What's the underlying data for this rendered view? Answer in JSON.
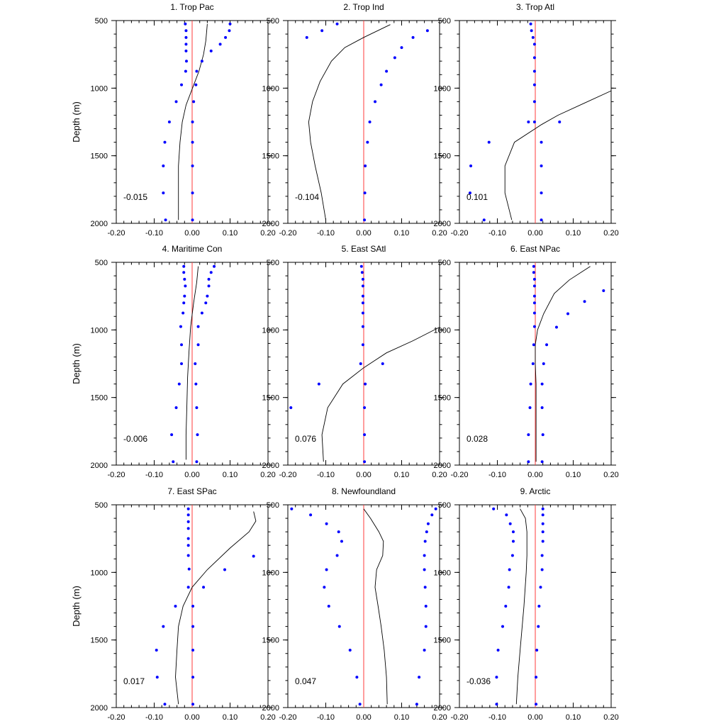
{
  "figure": {
    "ylabel": "Depth (m)"
  },
  "chart_data": [
    {
      "type": "scatter",
      "title": "1. Trop Pac",
      "annotation": "-0.015",
      "xlim": [
        -0.2,
        0.2
      ],
      "ylim": [
        500,
        2000
      ],
      "xticks": [
        "-0.20",
        "-0.10",
        "0.00",
        "0.10",
        "0.20"
      ],
      "yticks": [
        "500",
        "1000",
        "1500",
        "2000"
      ],
      "depths": [
        525,
        575,
        625,
        675,
        725,
        800,
        875,
        975,
        1100,
        1250,
        1400,
        1575,
        1775,
        1975
      ],
      "points_left": [
        -0.018,
        -0.016,
        -0.016,
        -0.016,
        -0.016,
        -0.015,
        -0.017,
        -0.028,
        -0.042,
        -0.06,
        -0.072,
        -0.076,
        -0.076,
        -0.07
      ],
      "points_right": [
        0.1,
        0.098,
        0.088,
        0.074,
        0.05,
        0.026,
        0.012,
        0.01,
        0.004,
        0.001,
        0.001,
        0.001,
        0.001,
        0.001
      ],
      "line": [
        [
          0.04,
          525
        ],
        [
          0.036,
          650
        ],
        [
          0.03,
          750
        ],
        [
          0.018,
          875
        ],
        [
          0.001,
          1000
        ],
        [
          -0.016,
          1125
        ],
        [
          -0.026,
          1250
        ],
        [
          -0.032,
          1400
        ],
        [
          -0.036,
          1575
        ],
        [
          -0.036,
          1775
        ],
        [
          -0.036,
          1975
        ]
      ],
      "zero_line": true
    },
    {
      "type": "scatter",
      "title": "2. Trop Ind",
      "annotation": "-0.104",
      "xlim": [
        -0.2,
        0.2
      ],
      "ylim": [
        500,
        2000
      ],
      "xticks": [
        "-0.20",
        "-0.10",
        "0.00",
        "0.10",
        "0.20"
      ],
      "yticks": [
        "500",
        "1000",
        "1500",
        "2000"
      ],
      "depths": [
        525,
        575,
        625,
        700,
        800,
        875,
        975,
        1100,
        1250,
        1400,
        1575,
        1775,
        1975
      ],
      "points_left": [
        -0.07,
        -0.11,
        -0.15
      ],
      "points_left_depths": [
        525,
        575,
        625
      ],
      "points_right": [
        0.168,
        0.13,
        0.1,
        0.082,
        0.06,
        0.046,
        0.03,
        0.016,
        0.01,
        0.004,
        0.003,
        0.002
      ],
      "points_right_depths": [
        575,
        625,
        700,
        775,
        875,
        975,
        1100,
        1250,
        1400,
        1575,
        1775,
        1975
      ],
      "line": [
        [
          0.07,
          530
        ],
        [
          0.0,
          625
        ],
        [
          -0.05,
          700
        ],
        [
          -0.085,
          800
        ],
        [
          -0.115,
          950
        ],
        [
          -0.135,
          1100
        ],
        [
          -0.145,
          1250
        ],
        [
          -0.14,
          1400
        ],
        [
          -0.128,
          1575
        ],
        [
          -0.112,
          1775
        ],
        [
          -0.1,
          1975
        ]
      ],
      "zero_line": true
    },
    {
      "type": "scatter",
      "title": "3. Trop Atl",
      "annotation": "0.101",
      "xlim": [
        -0.2,
        0.2
      ],
      "ylim": [
        500,
        2000
      ],
      "xticks": [
        "-0.20",
        "-0.10",
        "0.00",
        "0.10",
        "0.20"
      ],
      "yticks": [
        "500",
        "1000",
        "1500",
        "2000"
      ],
      "points_left": [
        -0.012,
        -0.01,
        -0.006,
        -0.002,
        -0.002,
        -0.002,
        -0.002,
        -0.002,
        -0.002,
        -0.018,
        -0.122,
        -0.17,
        -0.172,
        -0.135
      ],
      "points_left_depths": [
        525,
        575,
        625,
        675,
        775,
        875,
        975,
        1100,
        1250,
        1250,
        1400,
        1575,
        1775,
        1975
      ],
      "points_right": [
        0.064,
        0.016,
        0.016,
        0.016,
        0.016
      ],
      "points_right_depths": [
        1250,
        1400,
        1575,
        1775,
        1975
      ],
      "line": [
        [
          0.2,
          1020
        ],
        [
          0.13,
          1110
        ],
        [
          0.06,
          1200
        ],
        [
          0.016,
          1270
        ],
        [
          -0.055,
          1400
        ],
        [
          -0.08,
          1575
        ],
        [
          -0.08,
          1775
        ],
        [
          -0.062,
          1975
        ]
      ],
      "zero_line": true
    },
    {
      "type": "scatter",
      "title": "4. Maritime Con",
      "annotation": "-0.006",
      "xlim": [
        -0.2,
        0.2
      ],
      "ylim": [
        500,
        2000
      ],
      "xticks": [
        "-0.20",
        "-0.10",
        "0.00",
        "0.10",
        "0.20"
      ],
      "yticks": [
        "500",
        "1000",
        "1500",
        "2000"
      ],
      "points_left": [
        -0.022,
        -0.022,
        -0.02,
        -0.018,
        -0.02,
        -0.022,
        -0.024,
        -0.03,
        -0.028,
        -0.028,
        -0.034,
        -0.042,
        -0.054,
        -0.05
      ],
      "points_left_depths": [
        530,
        575,
        625,
        675,
        750,
        800,
        875,
        975,
        1110,
        1250,
        1400,
        1575,
        1775,
        1975
      ],
      "points_right": [
        0.058,
        0.05,
        0.044,
        0.044,
        0.04,
        0.036,
        0.026,
        0.016,
        0.016,
        0.008,
        0.01,
        0.012,
        0.014,
        0.012
      ],
      "points_right_depths": [
        530,
        575,
        625,
        675,
        750,
        800,
        875,
        975,
        1110,
        1250,
        1400,
        1575,
        1775,
        1975
      ],
      "line": [
        [
          0.016,
          530
        ],
        [
          0.012,
          650
        ],
        [
          0.004,
          800
        ],
        [
          -0.004,
          975
        ],
        [
          -0.008,
          1150
        ],
        [
          -0.012,
          1350
        ],
        [
          -0.014,
          1575
        ],
        [
          -0.016,
          1775
        ],
        [
          -0.016,
          1960
        ]
      ],
      "zero_line": true
    },
    {
      "type": "scatter",
      "title": "5. East SAtl",
      "annotation": "0.076",
      "xlim": [
        -0.2,
        0.2
      ],
      "ylim": [
        500,
        2000
      ],
      "xticks": [
        "-0.20",
        "-0.10",
        "0.00",
        "0.10",
        "0.20"
      ],
      "yticks": [
        "500",
        "1000",
        "1500",
        "2000"
      ],
      "points_left": [
        -0.006,
        -0.004,
        -0.002,
        -0.002,
        -0.002,
        -0.002,
        -0.002,
        -0.002,
        -0.002,
        -0.008,
        -0.118,
        -0.192
      ],
      "points_left_depths": [
        530,
        575,
        625,
        675,
        750,
        800,
        875,
        975,
        1110,
        1250,
        1400,
        1575
      ],
      "points_right": [
        0.05,
        0.004,
        0.002,
        0.002,
        0.002
      ],
      "points_right_depths": [
        1250,
        1400,
        1575,
        1775,
        1975
      ],
      "line": [
        [
          0.2,
          980
        ],
        [
          0.13,
          1080
        ],
        [
          0.06,
          1170
        ],
        [
          0.0,
          1280
        ],
        [
          -0.055,
          1400
        ],
        [
          -0.095,
          1575
        ],
        [
          -0.11,
          1775
        ],
        [
          -0.106,
          1975
        ]
      ],
      "zero_line": true
    },
    {
      "type": "scatter",
      "title": "6. East NPac",
      "annotation": "0.028",
      "xlim": [
        -0.2,
        0.2
      ],
      "ylim": [
        500,
        2000
      ],
      "xticks": [
        "-0.20",
        "-0.10",
        "0.00",
        "0.10",
        "0.20"
      ],
      "yticks": [
        "500",
        "1000",
        "1500",
        "2000"
      ],
      "points_left": [
        -0.004,
        -0.004,
        -0.002,
        -0.002,
        -0.002,
        -0.002,
        -0.002,
        -0.002,
        -0.004,
        -0.006,
        -0.012,
        -0.014,
        -0.018,
        -0.018
      ],
      "points_left_depths": [
        530,
        575,
        625,
        675,
        750,
        800,
        875,
        975,
        1110,
        1250,
        1400,
        1575,
        1775,
        1975
      ],
      "points_right": [
        0.18,
        0.13,
        0.086,
        0.056,
        0.03,
        0.022,
        0.018,
        0.018,
        0.02,
        0.018
      ],
      "points_right_depths": [
        710,
        790,
        880,
        980,
        1110,
        1250,
        1400,
        1575,
        1775,
        1975
      ],
      "line": [
        [
          0.145,
          530
        ],
        [
          0.09,
          630
        ],
        [
          0.05,
          730
        ],
        [
          0.022,
          880
        ],
        [
          0.006,
          1000
        ],
        [
          0.0,
          1110
        ],
        [
          0.0,
          1250
        ],
        [
          0.002,
          1400
        ],
        [
          0.002,
          1575
        ],
        [
          0.002,
          1775
        ],
        [
          0.002,
          1975
        ]
      ],
      "zero_line": true
    },
    {
      "type": "scatter",
      "title": "7. East SPac",
      "annotation": "0.017",
      "xlim": [
        -0.2,
        0.2
      ],
      "ylim": [
        500,
        2000
      ],
      "xticks": [
        "-0.20",
        "-0.10",
        "0.00",
        "0.10",
        "0.20"
      ],
      "yticks": [
        "500",
        "1000",
        "1500",
        "2000"
      ],
      "points_left": [
        -0.01,
        -0.01,
        -0.01,
        -0.01,
        -0.01,
        -0.01,
        -0.01,
        -0.008,
        -0.01,
        -0.044,
        -0.076,
        -0.094,
        -0.092,
        -0.072
      ],
      "points_left_depths": [
        530,
        575,
        625,
        675,
        750,
        800,
        875,
        975,
        1110,
        1250,
        1400,
        1575,
        1775,
        1975
      ],
      "points_right": [
        0.162,
        0.086,
        0.03,
        0.002,
        0.002,
        0.002,
        0.002,
        0.002
      ],
      "points_right_depths": [
        880,
        980,
        1110,
        1250,
        1400,
        1575,
        1775,
        1975
      ],
      "line": [
        [
          0.162,
          550
        ],
        [
          0.168,
          620
        ],
        [
          0.15,
          700
        ],
        [
          0.1,
          820
        ],
        [
          0.04,
          980
        ],
        [
          0.0,
          1110
        ],
        [
          -0.024,
          1250
        ],
        [
          -0.036,
          1400
        ],
        [
          -0.04,
          1575
        ],
        [
          -0.044,
          1775
        ],
        [
          -0.036,
          1975
        ]
      ],
      "zero_line": true
    },
    {
      "type": "scatter",
      "title": "8. Newfoundland",
      "annotation": "0.047",
      "xlim": [
        -0.2,
        0.2
      ],
      "ylim": [
        500,
        2000
      ],
      "xticks": [
        "-0.20",
        "-0.10",
        "0.00",
        "0.10",
        "0.20"
      ],
      "yticks": [
        "500",
        "1000",
        "1500",
        "2000"
      ],
      "points_left": [
        -0.19,
        -0.14,
        -0.098,
        -0.066,
        -0.058,
        -0.07,
        -0.098,
        -0.104,
        -0.092,
        -0.064,
        -0.036,
        -0.018,
        -0.01
      ],
      "points_left_depths": [
        530,
        575,
        640,
        700,
        770,
        875,
        980,
        1110,
        1250,
        1400,
        1575,
        1775,
        1975
      ],
      "points_right": [
        0.19,
        0.18,
        0.17,
        0.166,
        0.162,
        0.16,
        0.16,
        0.162,
        0.164,
        0.164,
        0.16,
        0.146,
        0.14
      ],
      "points_right_depths": [
        530,
        575,
        640,
        700,
        770,
        875,
        980,
        1110,
        1250,
        1400,
        1575,
        1775,
        1975
      ],
      "line": [
        [
          0.0,
          530
        ],
        [
          0.018,
          600
        ],
        [
          0.04,
          700
        ],
        [
          0.052,
          770
        ],
        [
          0.05,
          875
        ],
        [
          0.034,
          980
        ],
        [
          0.03,
          1110
        ],
        [
          0.038,
          1250
        ],
        [
          0.046,
          1400
        ],
        [
          0.054,
          1575
        ],
        [
          0.06,
          1775
        ],
        [
          0.062,
          1975
        ]
      ],
      "zero_line": true
    },
    {
      "type": "scatter",
      "title": "9. Arctic",
      "annotation": "-0.036",
      "xlim": [
        -0.2,
        0.2
      ],
      "ylim": [
        500,
        2000
      ],
      "xticks": [
        "-0.20",
        "-0.10",
        "0.00",
        "0.10",
        "0.20"
      ],
      "yticks": [
        "500",
        "1000",
        "1500",
        "2000"
      ],
      "points_left": [
        -0.11,
        -0.076,
        -0.066,
        -0.058,
        -0.058,
        -0.06,
        -0.068,
        -0.07,
        -0.078,
        -0.086,
        -0.098,
        -0.102,
        -0.102
      ],
      "points_left_depths": [
        530,
        575,
        640,
        700,
        770,
        875,
        980,
        1110,
        1250,
        1400,
        1575,
        1775,
        1975
      ],
      "points_right": [
        0.02,
        0.02,
        0.02,
        0.02,
        0.02,
        0.018,
        0.018,
        0.014,
        0.01,
        0.008,
        0.004,
        0.002,
        0.002
      ],
      "points_right_depths": [
        530,
        575,
        640,
        700,
        770,
        875,
        980,
        1110,
        1250,
        1400,
        1575,
        1775,
        1975
      ],
      "line": [
        [
          -0.04,
          530
        ],
        [
          -0.026,
          600
        ],
        [
          -0.022,
          700
        ],
        [
          -0.022,
          875
        ],
        [
          -0.024,
          1000
        ],
        [
          -0.03,
          1250
        ],
        [
          -0.04,
          1575
        ],
        [
          -0.046,
          1775
        ],
        [
          -0.05,
          1975
        ]
      ],
      "zero_line": true
    }
  ]
}
